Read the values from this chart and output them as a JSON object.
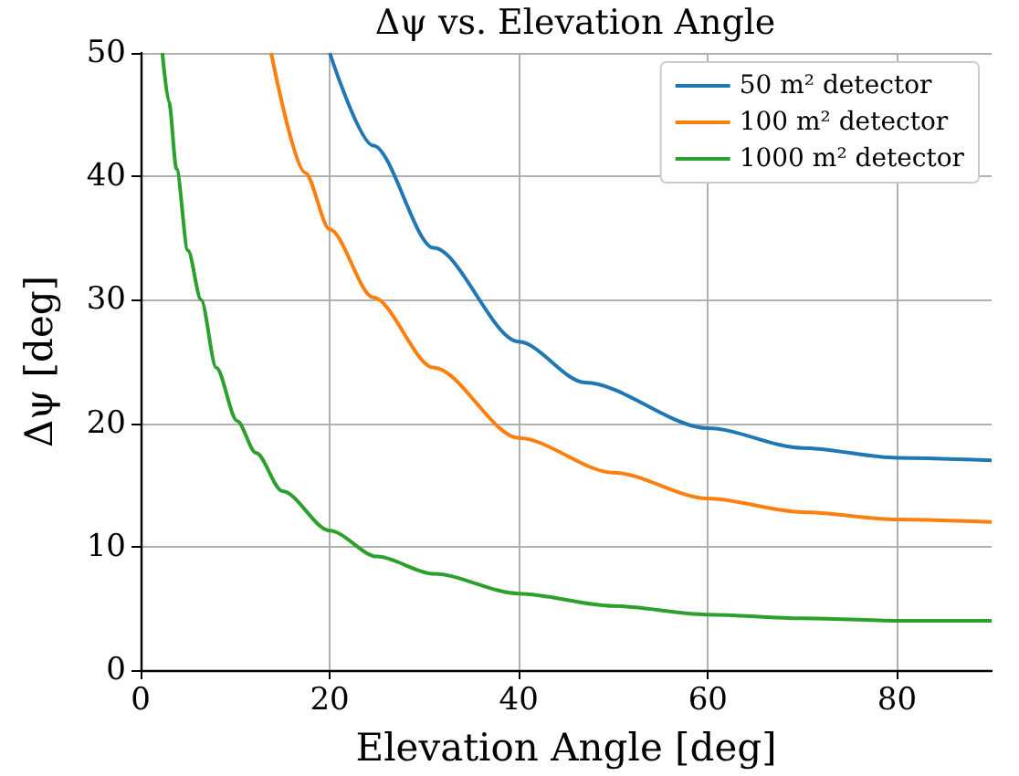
{
  "chart_data": {
    "type": "line",
    "title": "Δψ vs. Elevation Angle",
    "xlabel": "Elevation Angle [deg]",
    "ylabel": "Δψ [deg]",
    "xlim": [
      0,
      90
    ],
    "xticks": [
      0,
      20,
      40,
      60,
      80
    ],
    "ylim": [
      0,
      50
    ],
    "yticks": [
      0,
      10,
      20,
      30,
      40,
      50
    ],
    "grid": true,
    "legend": "top right",
    "series": [
      {
        "name": "50 m² detector",
        "color": "#1f77b4",
        "x": [
          20,
          24.6,
          31,
          40,
          47,
          60,
          70,
          80,
          90
        ],
        "values": [
          50,
          42.5,
          34.2,
          26.6,
          23.3,
          19.6,
          18,
          17.2,
          17
        ]
      },
      {
        "name": "100 m² detector",
        "color": "#ff7f0e",
        "x": [
          13.8,
          17.4,
          20,
          24.6,
          31,
          40,
          50,
          60,
          70,
          80,
          90
        ],
        "values": [
          50,
          40.3,
          35.7,
          30.2,
          24.5,
          18.8,
          16,
          13.9,
          12.8,
          12.2,
          12
        ]
      },
      {
        "name": "1000 m² detector",
        "color": "#2ca02c",
        "x": [
          2.3,
          3,
          3.8,
          5,
          6.4,
          8,
          10.2,
          12.2,
          15,
          20,
          25,
          31,
          40,
          50,
          60,
          70,
          80,
          90
        ],
        "values": [
          50,
          46,
          40.6,
          34,
          30,
          24.5,
          20.2,
          17.6,
          14.5,
          11.3,
          9.2,
          7.8,
          6.2,
          5.2,
          4.5,
          4.2,
          4,
          4
        ]
      }
    ]
  }
}
